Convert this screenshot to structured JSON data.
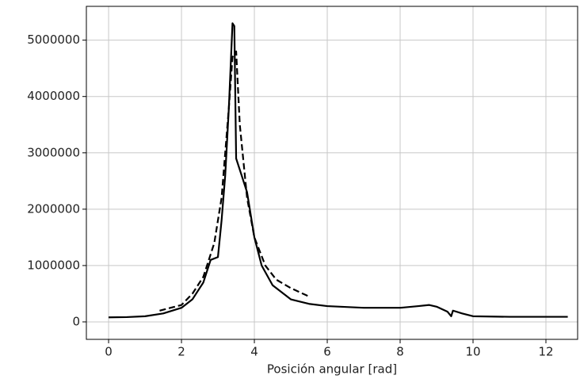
{
  "chart_data": {
    "type": "line",
    "xlabel": "Posición angular [rad]",
    "xlim": [
      -0.61,
      12.87
    ],
    "ylim": [
      -310000,
      5600000
    ],
    "xticks": [
      0,
      2,
      4,
      6,
      8,
      10,
      12
    ],
    "yticks": [
      0,
      1000000,
      2000000,
      3000000,
      4000000,
      5000000
    ],
    "grid": true,
    "series": [
      {
        "color": "#000000",
        "dashed": false,
        "x": [
          0,
          0.5,
          1,
          1.5,
          2,
          2.3,
          2.6,
          2.8,
          3.0,
          3.1,
          3.2,
          3.3,
          3.4,
          3.45,
          3.5,
          3.6,
          3.8,
          4.0,
          4.2,
          4.5,
          5,
          5.5,
          6,
          7,
          8,
          8.5,
          8.8,
          9.0,
          9.3,
          9.4,
          9.45,
          9.7,
          10,
          11,
          12,
          12.6
        ],
        "values": [
          80000,
          85000,
          100000,
          150000,
          250000,
          400000,
          700000,
          1100000,
          1150000,
          1800000,
          2600000,
          3800000,
          5300000,
          5250000,
          2900000,
          2700000,
          2300000,
          1500000,
          1000000,
          650000,
          400000,
          320000,
          280000,
          250000,
          250000,
          280000,
          300000,
          270000,
          180000,
          100000,
          200000,
          150000,
          100000,
          90000,
          90000,
          90000
        ]
      },
      {
        "color": "#000000",
        "dashed": true,
        "x": [
          1.4,
          1.7,
          2.0,
          2.3,
          2.6,
          2.9,
          3.1,
          3.3,
          3.4,
          3.5,
          3.6,
          3.8,
          4.0,
          4.3,
          4.6,
          5.0,
          5.5
        ],
        "values": [
          200000,
          250000,
          300000,
          500000,
          800000,
          1400000,
          2200000,
          3800000,
          4700000,
          4800000,
          3500000,
          2200000,
          1500000,
          1000000,
          750000,
          600000,
          450000
        ]
      }
    ]
  }
}
